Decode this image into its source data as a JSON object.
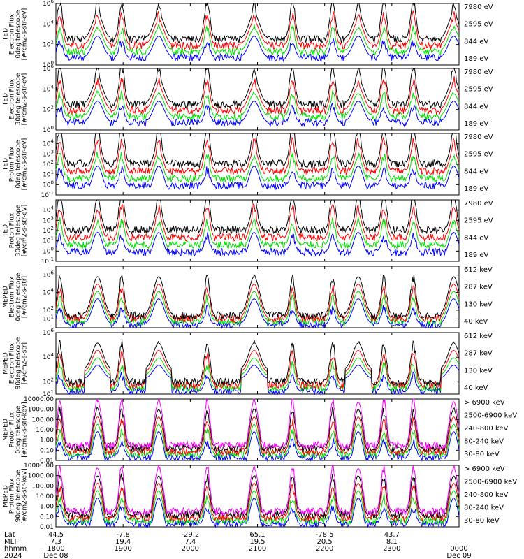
{
  "colors": {
    "black": "#000000",
    "red": "#ff0000",
    "green": "#00e000",
    "blue": "#0000ff",
    "magenta": "#ff00ff"
  },
  "chart_data": [
    {
      "type": "line",
      "ylabel": [
        "TED",
        "Electron Flux",
        "0deg telescope",
        "[#/cm2-s-str-eV]"
      ],
      "yscale": "log",
      "ylim": [
        1,
        1000000
      ],
      "yticks": [
        {
          "v": 1,
          "label": "10^0"
        },
        {
          "v": 100,
          "label": "10^2"
        },
        {
          "v": 10000,
          "label": "10^4"
        },
        {
          "v": 1000000,
          "label": "10^6"
        }
      ],
      "series": [
        {
          "name": "7980 eV",
          "color": "black"
        },
        {
          "name": "2595 eV",
          "color": "red"
        },
        {
          "name": "844 eV",
          "color": "green"
        },
        {
          "name": "189 eV",
          "color": "blue"
        }
      ]
    },
    {
      "type": "line",
      "ylabel": [
        "TED",
        "Electron Flux",
        "30deg telescope",
        "[#/cm2-s-str-eV]"
      ],
      "yscale": "log",
      "ylim": [
        1,
        1000000
      ],
      "yticks": [
        {
          "v": 1,
          "label": "10^0"
        },
        {
          "v": 100,
          "label": "10^2"
        },
        {
          "v": 10000,
          "label": "10^4"
        },
        {
          "v": 1000000,
          "label": "10^6"
        }
      ],
      "series": [
        {
          "name": "7980 eV",
          "color": "black"
        },
        {
          "name": "2595 eV",
          "color": "red"
        },
        {
          "name": "844 eV",
          "color": "green"
        },
        {
          "name": "189 eV",
          "color": "blue"
        }
      ]
    },
    {
      "type": "line",
      "ylabel": [
        "TED",
        "Proton Flux",
        "0deg telescope",
        "[#/cm2-s-str-eV]"
      ],
      "yscale": "log",
      "ylim": [
        0.1,
        100000
      ],
      "yticks": [
        {
          "v": 0.1,
          "label": "10^-1"
        },
        {
          "v": 1,
          "label": "10^0"
        },
        {
          "v": 10,
          "label": "10^1"
        },
        {
          "v": 100,
          "label": "10^2"
        },
        {
          "v": 1000,
          "label": "10^3"
        },
        {
          "v": 10000,
          "label": "10^4"
        }
      ],
      "series": [
        {
          "name": "7980 eV",
          "color": "black"
        },
        {
          "name": "2595 eV",
          "color": "red"
        },
        {
          "name": "844 eV",
          "color": "green"
        },
        {
          "name": "189 eV",
          "color": "blue"
        }
      ]
    },
    {
      "type": "line",
      "ylabel": [
        "TED",
        "Proton Flux",
        "30deg telescope",
        "[#/cm2-s-str-eV]"
      ],
      "yscale": "log",
      "ylim": [
        0.1,
        100000
      ],
      "yticks": [
        {
          "v": 0.1,
          "label": "10^-1"
        },
        {
          "v": 1,
          "label": "10^0"
        },
        {
          "v": 10,
          "label": "10^1"
        },
        {
          "v": 100,
          "label": "10^2"
        },
        {
          "v": 1000,
          "label": "10^3"
        },
        {
          "v": 10000,
          "label": "10^4"
        }
      ],
      "series": [
        {
          "name": "7980 eV",
          "color": "black"
        },
        {
          "name": "2595 eV",
          "color": "red"
        },
        {
          "name": "844 eV",
          "color": "green"
        },
        {
          "name": "189 eV",
          "color": "blue"
        }
      ]
    },
    {
      "type": "line",
      "ylabel": [
        "MEPED",
        "Electron Flux",
        "0deg telescope",
        "[#/cm2-s-str]"
      ],
      "yscale": "log",
      "ylim": [
        1,
        10000000
      ],
      "yticks": [
        {
          "v": 10,
          "label": "10^1"
        },
        {
          "v": 100,
          "label": "10^2"
        },
        {
          "v": 10000,
          "label": "10^4"
        },
        {
          "v": 1000000,
          "label": "10^6"
        }
      ],
      "series": [
        {
          "name": "612 keV",
          "color": "black"
        },
        {
          "name": "287 keV",
          "color": "red"
        },
        {
          "name": "130 keV",
          "color": "green"
        },
        {
          "name": "40 keV",
          "color": "blue"
        }
      ]
    },
    {
      "type": "line",
      "ylabel": [
        "MEPED",
        "Electron Flux",
        "90deg telescope",
        "[#/cm2-s-str]"
      ],
      "yscale": "log",
      "ylim": [
        10,
        1000000
      ],
      "yticks": [
        {
          "v": 10,
          "label": "10^1"
        },
        {
          "v": 100,
          "label": "10^2"
        },
        {
          "v": 10000,
          "label": "10^4"
        },
        {
          "v": 1000000,
          "label": "10^6"
        }
      ],
      "series": [
        {
          "name": "612 keV",
          "color": "black"
        },
        {
          "name": "287 keV",
          "color": "red"
        },
        {
          "name": "130 keV",
          "color": "green"
        },
        {
          "name": "40 keV",
          "color": "blue"
        }
      ]
    },
    {
      "type": "line",
      "ylabel": [
        "MEPED",
        "Proton Flux",
        "0deg telescope",
        "[#/cm2-s-str-keV]"
      ],
      "yscale": "log",
      "ylim": [
        0.01,
        10000
      ],
      "yticks": [
        {
          "v": 0.01,
          "label": "0.01"
        },
        {
          "v": 0.1,
          "label": "0.10"
        },
        {
          "v": 1,
          "label": "1.00"
        },
        {
          "v": 10,
          "label": "10.00"
        },
        {
          "v": 100,
          "label": "100.00"
        },
        {
          "v": 1000,
          "label": "1000.00"
        },
        {
          "v": 10000,
          "label": "10000.00"
        }
      ],
      "series": [
        {
          "name": "> 6900 keV",
          "color": "magenta"
        },
        {
          "name": "2500-6900 keV",
          "color": "black"
        },
        {
          "name": "240-800 keV",
          "color": "red"
        },
        {
          "name": "80-240 keV",
          "color": "green"
        },
        {
          "name": "30-80 keV",
          "color": "blue"
        }
      ]
    },
    {
      "type": "line",
      "ylabel": [
        "MEPED",
        "Proton Flux",
        "90deg telescope",
        "[#/cm2-s-str-keV]"
      ],
      "yscale": "log",
      "ylim": [
        0.01,
        10000
      ],
      "yticks": [
        {
          "v": 0.01,
          "label": "0.01"
        },
        {
          "v": 0.1,
          "label": "0.10"
        },
        {
          "v": 1,
          "label": "1.00"
        },
        {
          "v": 10,
          "label": "10.00"
        },
        {
          "v": 100,
          "label": "100.00"
        },
        {
          "v": 1000,
          "label": "1000.00"
        },
        {
          "v": 10000,
          "label": "10000.00"
        }
      ],
      "series": [
        {
          "name": "> 6900 keV",
          "color": "magenta"
        },
        {
          "name": "2500-6900 keV",
          "color": "black"
        },
        {
          "name": "240-800 keV",
          "color": "red"
        },
        {
          "name": "80-240 keV",
          "color": "green"
        },
        {
          "name": "30-80 keV",
          "color": "blue"
        }
      ]
    }
  ],
  "xaxis": {
    "row_labels": [
      "Lat",
      "MLT",
      "hhmm",
      "2024"
    ],
    "lat": [
      "44.5",
      "-7.8",
      "-29.2",
      "65.1",
      "-78.5",
      "43.7"
    ],
    "mlt": [
      "7.3",
      "19.4",
      "7.4",
      "19.5",
      "20.5",
      "8.1"
    ],
    "hhmm": [
      "1800",
      "1900",
      "2000",
      "2100",
      "2200",
      "2300",
      "0000"
    ],
    "dates": [
      "Dec 08",
      "Dec 09"
    ],
    "xlim": [
      0,
      6
    ]
  },
  "events": [
    0.06,
    0.62,
    0.98,
    1.53,
    2.25,
    2.95,
    3.52,
    4.12,
    4.5,
    4.88,
    5.32,
    5.92
  ],
  "auroral_arcs": [
    0.62,
    1.53,
    2.95,
    4.5,
    5.92
  ]
}
